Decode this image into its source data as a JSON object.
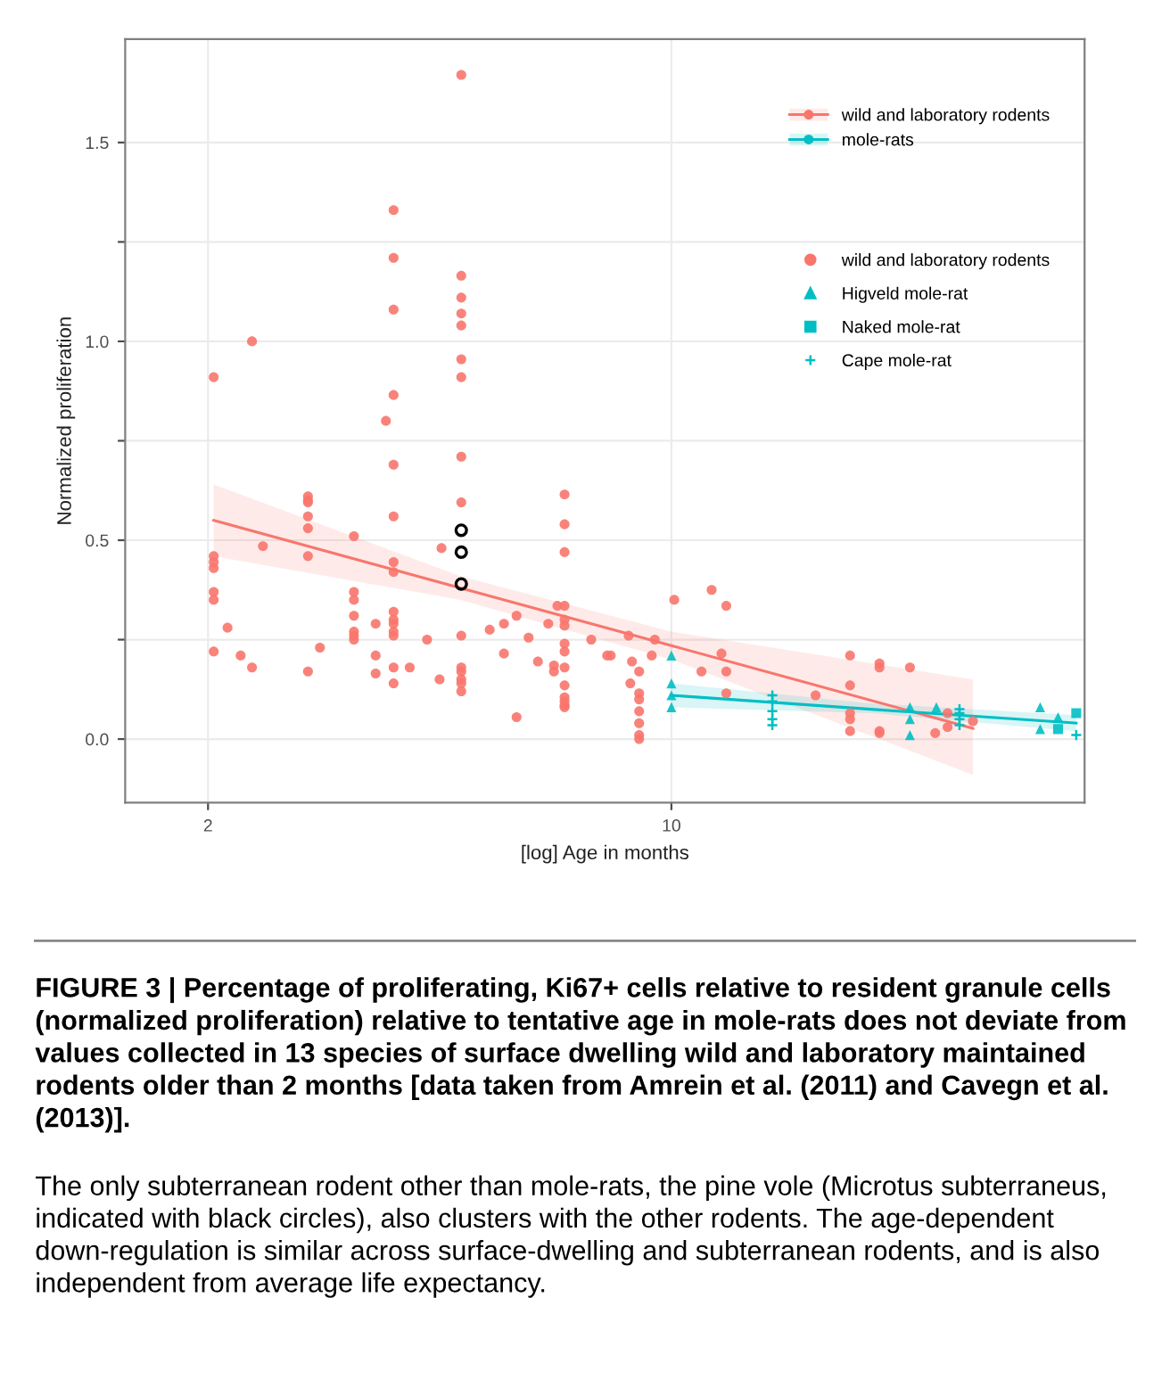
{
  "chart_data": {
    "type": "scatter",
    "xlabel": "[log] Age in months",
    "ylabel": "Normalized proliferation",
    "log": "x",
    "xlim": [
      1.5,
      42
    ],
    "xticks": [
      2,
      10
    ],
    "ylim": [
      -0.16,
      1.76
    ],
    "yticks": [
      {
        "value": 0,
        "label": "0.0"
      },
      {
        "value": 0.25,
        "label": null
      },
      {
        "value": 0.5,
        "label": "0.5"
      },
      {
        "value": 0.75,
        "label": null
      },
      {
        "value": 1.0,
        "label": "1.0"
      },
      {
        "value": 1.25,
        "label": null
      },
      {
        "value": 1.5,
        "label": "1.5"
      }
    ],
    "grid": true,
    "legend": "top right",
    "series": [
      {
        "type": "line",
        "name": "wild and laboratory rodents",
        "color": "#f8766d",
        "x": [
          2.04,
          4.8,
          10,
          28.5
        ],
        "values": [
          0.55,
          0.38,
          0.235,
          0.027
        ],
        "lower": [
          0.46,
          0.35,
          0.2,
          -0.09
        ],
        "upper": [
          0.64,
          0.41,
          0.27,
          0.15
        ]
      },
      {
        "type": "line",
        "name": "mole-rats",
        "color": "#00bfc4",
        "x": [
          10,
          20,
          40.8
        ],
        "values": [
          0.11,
          0.075,
          0.04
        ],
        "lower": [
          0.08,
          0.065,
          0.02
        ],
        "upper": [
          0.14,
          0.09,
          0.06
        ]
      },
      {
        "name": "wild and laboratory rodents",
        "color": "#f8766d",
        "marker": "circle",
        "x": [
          2.04,
          2.04,
          2.04,
          2.04,
          2.04,
          2.04,
          2.04,
          2.14,
          2.24,
          2.33,
          2.33,
          2.42,
          2.83,
          2.83,
          2.83,
          2.83,
          2.83,
          2.83,
          2.83,
          2.95,
          3.32,
          3.32,
          3.32,
          3.32,
          3.32,
          3.32,
          3.32,
          3.58,
          3.58,
          3.58,
          3.71,
          3.81,
          3.81,
          3.81,
          3.81,
          3.81,
          3.81,
          3.81,
          3.81,
          3.81,
          3.81,
          3.81,
          3.81,
          3.81,
          3.81,
          3.81,
          4.03,
          4.28,
          4.47,
          4.5,
          4.82,
          4.82,
          4.82,
          4.82,
          4.82,
          4.82,
          4.82,
          4.82,
          4.82,
          4.82,
          4.82,
          4.82,
          4.82,
          4.82,
          4.82,
          5.32,
          5.59,
          5.59,
          5.84,
          5.84,
          6.09,
          6.29,
          6.52,
          6.65,
          6.65,
          6.73,
          6.9,
          6.9,
          6.9,
          6.9,
          6.9,
          6.9,
          6.9,
          6.9,
          6.9,
          6.9,
          6.9,
          6.9,
          6.9,
          6.9,
          7.57,
          8.0,
          8.1,
          8.62,
          8.72,
          8.67,
          8.94,
          8.94,
          8.94,
          8.94,
          8.94,
          8.94,
          8.94,
          9.34,
          9.44,
          10.1,
          11.1,
          11.5,
          11.9,
          12.1,
          12.1,
          12.1,
          16.5,
          18.6,
          18.6,
          18.6,
          18.6,
          18.6,
          20.6,
          20.6,
          20.6,
          20.6,
          22.9,
          25.0,
          26.1,
          26.1,
          28.5
        ],
        "values": [
          0.91,
          0.46,
          0.445,
          0.43,
          0.37,
          0.35,
          0.22,
          0.28,
          0.21,
          1.0,
          0.18,
          0.485,
          0.61,
          0.6,
          0.595,
          0.56,
          0.53,
          0.46,
          0.17,
          0.23,
          0.51,
          0.37,
          0.35,
          0.31,
          0.27,
          0.26,
          0.25,
          0.29,
          0.21,
          0.165,
          0.8,
          1.33,
          1.21,
          1.08,
          0.865,
          0.69,
          0.56,
          0.445,
          0.42,
          0.32,
          0.3,
          0.29,
          0.27,
          0.26,
          0.18,
          0.14,
          0.18,
          0.25,
          0.15,
          0.48,
          1.67,
          1.165,
          1.11,
          1.07,
          1.04,
          0.955,
          0.91,
          0.71,
          0.595,
          0.26,
          0.18,
          0.17,
          0.15,
          0.14,
          0.12,
          0.275,
          0.29,
          0.215,
          0.31,
          0.055,
          0.255,
          0.195,
          0.29,
          0.185,
          0.17,
          0.335,
          0.615,
          0.54,
          0.47,
          0.335,
          0.3,
          0.285,
          0.24,
          0.22,
          0.18,
          0.135,
          0.105,
          0.095,
          0.085,
          0.08,
          0.25,
          0.21,
          0.21,
          0.26,
          0.195,
          0.14,
          0.17,
          0.115,
          0.1,
          0.07,
          0.04,
          0.01,
          0.0,
          0.21,
          0.25,
          0.35,
          0.17,
          0.375,
          0.215,
          0.335,
          0.17,
          0.115,
          0.11,
          0.21,
          0.135,
          0.065,
          0.05,
          0.02,
          0.19,
          0.18,
          0.02,
          0.015,
          0.18,
          0.015,
          0.065,
          0.03,
          0.045
        ]
      },
      {
        "color": "#000000",
        "marker": "circle",
        "x": [
          4.82,
          4.82,
          4.82
        ],
        "values": [
          0.525,
          0.47,
          0.39
        ]
      },
      {
        "name": "Higveld mole-rat",
        "color": "#00bfc4",
        "marker": "triangle",
        "x": [
          10,
          10,
          10,
          10,
          22.9,
          22.9,
          22.9,
          25.1,
          36.0,
          36.0,
          38.3
        ],
        "values": [
          0.21,
          0.14,
          0.11,
          0.08,
          0.08,
          0.05,
          0.01,
          0.08,
          0.08,
          0.025,
          0.055
        ]
      },
      {
        "name": "Naked mole-rat",
        "color": "#00bfc4",
        "marker": "square",
        "x": [
          38.3,
          40.8
        ],
        "values": [
          0.025,
          0.065
        ]
      },
      {
        "name": "Cape mole-rat",
        "color": "#00bfc4",
        "marker": "cross",
        "x": [
          14.2,
          14.2,
          14.2,
          14.2,
          14.2,
          27.2,
          27.2,
          27.2,
          27.2,
          40.8
        ],
        "values": [
          0.11,
          0.095,
          0.07,
          0.05,
          0.035,
          0.075,
          0.065,
          0.05,
          0.035,
          0.01
        ]
      }
    ],
    "annotations": [
      "FIGURE 3 | Percentage of proliferating, Ki67+ cells relative to resident granule cells (normalized proliferation) relative to tentative age in mole-rats does not deviate from values collected in 13 species of surface dwelling wild and laboratory maintained rodents older than 2 months [data taken from Amrein et al. (2011) and Cavegn et al. (2013)].",
      "The only subterranean rodent other than mole-rats, the pine vole (Microtus subterraneus, indicated with black circles), also clusters with the other rodents. The age-dependent down-regulation is similar across surface-dwelling and subterranean rodents, and is also independent from average life expectancy."
    ]
  }
}
